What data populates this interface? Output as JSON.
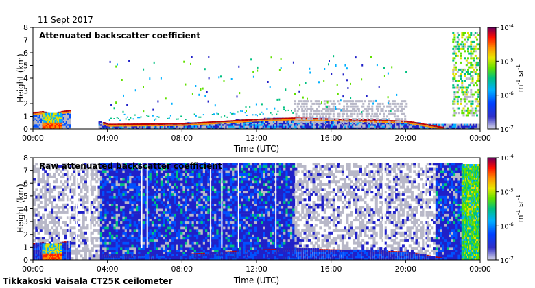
{
  "header": {
    "date": "11 Sept 2017"
  },
  "footer": {
    "site": "Tikkakoski Vaisala CT25K ceilometer"
  },
  "colorscale": [
    "#b8b8c8",
    "#2020c8",
    "#0050ff",
    "#00b0ff",
    "#00c080",
    "#60e000",
    "#e0e000",
    "#ff9000",
    "#ff2000",
    "#c00000",
    "#700070"
  ],
  "chart_data": [
    {
      "type": "heatmap",
      "title": "Attenuated backscatter coefficient",
      "xlabel": "Time (UTC)",
      "ylabel": "Height (km)",
      "xlim": [
        "00:00",
        "24:00"
      ],
      "ylim": [
        0,
        8
      ],
      "xticks": [
        "00:00",
        "04:00",
        "08:00",
        "12:00",
        "16:00",
        "20:00",
        "00:00"
      ],
      "yticks": [
        0,
        1,
        2,
        3,
        4,
        5,
        6,
        7,
        8
      ],
      "colorbar": {
        "label": "m-1 sr-1",
        "ticks": [
          "10-7",
          "10-6",
          "10-5",
          "10-4"
        ],
        "scale": "log"
      },
      "features": {
        "boundary_layer_top_km": [
          [
            0,
            1.2
          ],
          [
            0.5,
            1.3
          ],
          [
            1.0,
            1.0
          ],
          [
            1.5,
            1.3
          ],
          [
            2.0,
            1.4
          ],
          [
            4.0,
            0.3
          ],
          [
            8.0,
            0.35
          ],
          [
            12.0,
            0.7
          ],
          [
            14.0,
            0.8
          ],
          [
            19.0,
            0.6
          ],
          [
            20.0,
            0.55
          ],
          [
            22.0,
            0.05
          ]
        ],
        "strong_return_near_ground": [
          "00:30",
          "01:30"
        ],
        "upper_cloud": {
          "start": "22:30",
          "end": "24:00",
          "base_km": 1,
          "top_km": 7.5
        }
      }
    },
    {
      "type": "heatmap",
      "title": "Raw attenuated backscatter coefficient",
      "xlabel": "Time (UTC)",
      "ylabel": "Height (km)",
      "xlim": [
        "00:00",
        "24:00"
      ],
      "ylim": [
        0,
        8
      ],
      "xticks": [
        "00:00",
        "04:00",
        "08:00",
        "12:00",
        "16:00",
        "20:00",
        "00:00"
      ],
      "yticks": [
        0,
        1,
        2,
        3,
        4,
        5,
        6,
        7,
        8
      ],
      "colorbar": {
        "label": "m-1 sr-1",
        "ticks": [
          "10-7",
          "10-6",
          "10-5",
          "10-4"
        ],
        "scale": "log"
      },
      "features": {
        "noise_columns": [
          "03:30-14:00",
          "21:30-24:00"
        ],
        "grey_background_columns": [
          "00:00-03:30",
          "14:00-21:30"
        ],
        "upper_cloud": {
          "start": "23:00",
          "end": "24:00",
          "base_km": 0,
          "top_km": 7.5
        }
      }
    }
  ]
}
